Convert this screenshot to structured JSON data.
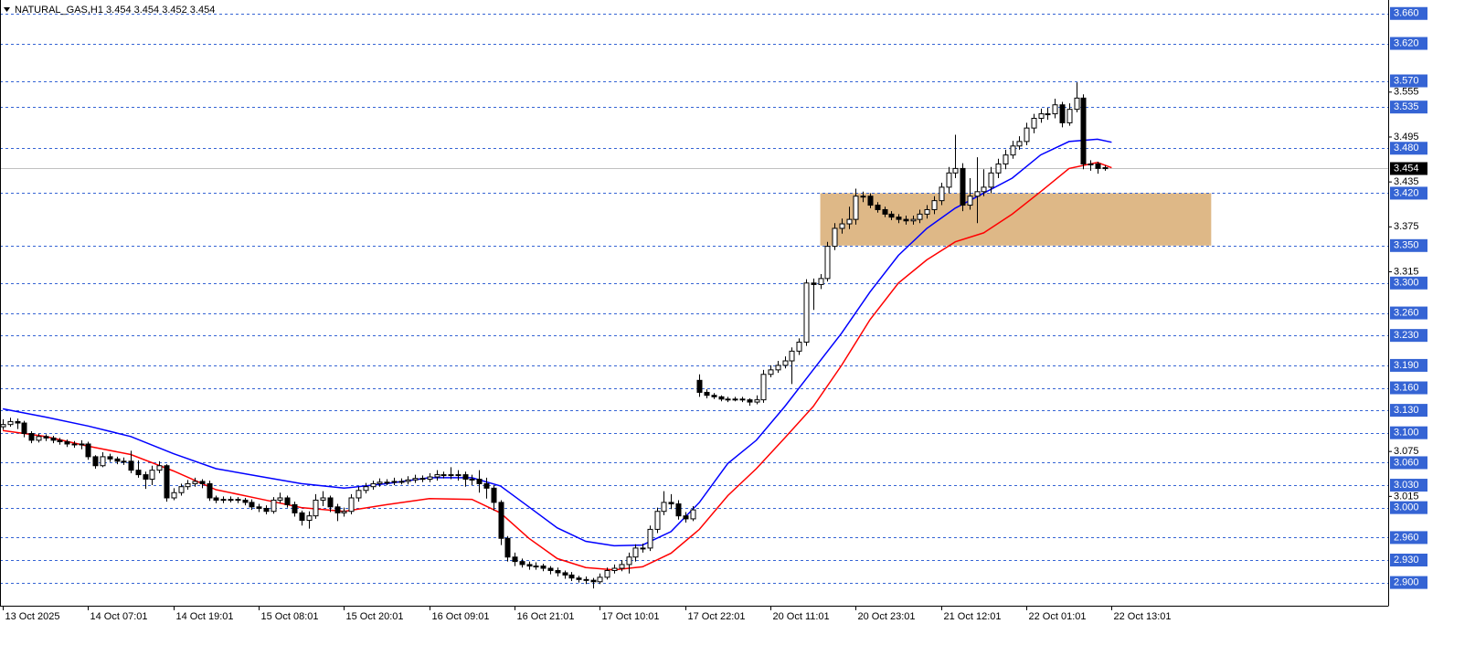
{
  "chart_data": {
    "type": "candlestick",
    "title": "NATURAL_GAS,H1  3.454 3.454 3.452 3.454",
    "xlim": [
      -0.4,
      194.9
    ],
    "ylim": [
      2.869,
      3.678
    ],
    "up_color": "#ffffff",
    "down_color": "#000000",
    "open": [
      3.108,
      3.111,
      3.115,
      3.113,
      3.099,
      3.09,
      3.095,
      3.093,
      3.09,
      3.088,
      3.085,
      3.084,
      3.085,
      3.068,
      3.056,
      3.068,
      3.065,
      3.062,
      3.062,
      3.05,
      3.044,
      3.038,
      3.05,
      3.056,
      3.013,
      3.02,
      3.028,
      3.032,
      3.035,
      3.032,
      3.013,
      3.01,
      3.011,
      3.011,
      3.01,
      3.007,
      3.001,
      2.999,
      2.995,
      3.01,
      3.013,
      3.004,
      2.993,
      2.983,
      2.989,
      3.01,
      3.013,
      3.001,
      2.993,
      2.995,
      3.013,
      3.023,
      3.028,
      3.032,
      3.034,
      3.034,
      3.035,
      3.035,
      3.037,
      3.039,
      3.038,
      3.041,
      3.044,
      3.043,
      3.044,
      3.044,
      3.038,
      3.038,
      3.032,
      3.026,
      3.007,
      2.959,
      2.934,
      2.928,
      2.924,
      2.922,
      2.922,
      2.919,
      2.916,
      2.913,
      2.91,
      2.906,
      2.904,
      2.903,
      2.901,
      2.907,
      2.916,
      2.919,
      2.924,
      2.934,
      2.946,
      2.946,
      2.971,
      2.995,
      3.007,
      3.005,
      2.989,
      2.985,
      3.17,
      3.154,
      3.15,
      3.148,
      3.145,
      3.144,
      3.145,
      3.144,
      3.141,
      3.144,
      3.178,
      3.184,
      3.19,
      3.196,
      3.209,
      3.221,
      3.3,
      3.298,
      3.306,
      3.349,
      3.373,
      3.379,
      3.385,
      3.416,
      3.416,
      3.404,
      3.398,
      3.392,
      3.388,
      3.385,
      3.383,
      3.385,
      3.392,
      3.398,
      3.41,
      3.428,
      3.447,
      3.453,
      3.404,
      3.416,
      3.422,
      3.428,
      3.447,
      3.459,
      3.471,
      3.483,
      3.489,
      3.507,
      3.52,
      3.526,
      3.526,
      3.538,
      3.514,
      3.532,
      3.547,
      3.459,
      3.459,
      3.453
    ],
    "high": [
      3.118,
      3.12,
      3.119,
      3.116,
      3.102,
      3.099,
      3.098,
      3.096,
      3.093,
      3.091,
      3.089,
      3.09,
      3.088,
      3.07,
      3.074,
      3.072,
      3.068,
      3.067,
      3.076,
      3.063,
      3.048,
      3.056,
      3.062,
      3.058,
      3.026,
      3.032,
      3.037,
      3.04,
      3.038,
      3.036,
      3.016,
      3.015,
      3.015,
      3.014,
      3.013,
      3.011,
      3.005,
      3.003,
      3.014,
      3.02,
      3.016,
      3.008,
      2.996,
      2.995,
      3.018,
      3.022,
      3.016,
      3.005,
      3.0,
      3.018,
      3.028,
      3.033,
      3.036,
      3.039,
      3.038,
      3.04,
      3.039,
      3.042,
      3.044,
      3.043,
      3.046,
      3.05,
      3.048,
      3.054,
      3.05,
      3.048,
      3.044,
      3.05,
      3.04,
      3.03,
      3.01,
      2.962,
      2.94,
      2.932,
      2.928,
      2.927,
      2.925,
      2.922,
      2.92,
      2.916,
      2.914,
      2.909,
      2.908,
      2.906,
      2.912,
      2.92,
      2.924,
      2.93,
      2.94,
      2.951,
      2.952,
      2.976,
      3.0,
      3.022,
      3.018,
      3.01,
      2.994,
      3.002,
      3.178,
      3.158,
      3.153,
      3.15,
      3.148,
      3.148,
      3.148,
      3.146,
      3.15,
      3.184,
      3.19,
      3.196,
      3.202,
      3.214,
      3.226,
      3.305,
      3.306,
      3.312,
      3.355,
      3.38,
      3.386,
      3.402,
      3.426,
      3.422,
      3.42,
      3.408,
      3.402,
      3.396,
      3.392,
      3.39,
      3.39,
      3.398,
      3.404,
      3.416,
      3.434,
      3.455,
      3.498,
      3.46,
      3.44,
      3.468,
      3.452,
      3.455,
      3.466,
      3.478,
      3.49,
      3.496,
      3.514,
      3.526,
      3.533,
      3.534,
      3.546,
      3.542,
      3.54,
      3.568,
      3.552,
      3.464,
      3.462,
      3.457
    ],
    "low": [
      3.104,
      3.108,
      3.105,
      3.094,
      3.086,
      3.087,
      3.089,
      3.086,
      3.084,
      3.081,
      3.08,
      3.078,
      3.064,
      3.052,
      3.054,
      3.061,
      3.058,
      3.057,
      3.046,
      3.04,
      3.025,
      3.03,
      3.046,
      3.008,
      3.01,
      3.016,
      3.024,
      3.028,
      3.026,
      3.009,
      3.006,
      3.006,
      3.007,
      3.006,
      3.003,
      2.997,
      2.994,
      2.991,
      2.992,
      3.006,
      3.0,
      2.988,
      2.976,
      2.972,
      2.985,
      3.002,
      2.994,
      2.982,
      2.988,
      2.991,
      3.008,
      3.019,
      3.024,
      3.028,
      3.03,
      3.03,
      3.031,
      3.031,
      3.033,
      3.034,
      3.034,
      3.036,
      3.039,
      3.038,
      3.036,
      3.028,
      3.03,
      3.02,
      3.012,
      2.996,
      2.95,
      2.928,
      2.922,
      2.92,
      2.917,
      2.917,
      2.915,
      2.911,
      2.908,
      2.905,
      2.902,
      2.9,
      2.898,
      2.892,
      2.898,
      2.904,
      2.912,
      2.915,
      2.912,
      2.928,
      2.94,
      2.942,
      2.966,
      2.99,
      2.998,
      2.984,
      2.98,
      2.982,
      3.148,
      3.146,
      3.145,
      3.142,
      3.141,
      3.142,
      3.141,
      3.136,
      3.138,
      3.14,
      3.174,
      3.18,
      3.186,
      3.165,
      3.204,
      3.216,
      3.264,
      3.292,
      3.302,
      3.344,
      3.366,
      3.372,
      3.378,
      3.408,
      3.4,
      3.394,
      3.388,
      3.384,
      3.38,
      3.378,
      3.378,
      3.38,
      3.386,
      3.392,
      3.404,
      3.42,
      3.44,
      3.396,
      3.398,
      3.38,
      3.416,
      3.42,
      3.44,
      3.452,
      3.466,
      3.478,
      3.484,
      3.5,
      3.514,
      3.518,
      3.52,
      3.508,
      3.51,
      3.528,
      3.452,
      3.45,
      3.446,
      3.45
    ],
    "close": [
      3.111,
      3.115,
      3.113,
      3.099,
      3.09,
      3.095,
      3.093,
      3.09,
      3.088,
      3.085,
      3.084,
      3.085,
      3.068,
      3.056,
      3.068,
      3.065,
      3.062,
      3.062,
      3.05,
      3.044,
      3.038,
      3.05,
      3.056,
      3.013,
      3.02,
      3.028,
      3.032,
      3.035,
      3.032,
      3.013,
      3.01,
      3.011,
      3.011,
      3.01,
      3.007,
      3.001,
      2.999,
      2.995,
      3.01,
      3.013,
      3.004,
      2.993,
      2.983,
      2.989,
      3.01,
      3.013,
      3.001,
      2.993,
      2.995,
      3.013,
      3.023,
      3.028,
      3.032,
      3.034,
      3.034,
      3.035,
      3.035,
      3.037,
      3.039,
      3.038,
      3.041,
      3.044,
      3.043,
      3.044,
      3.044,
      3.038,
      3.038,
      3.032,
      3.026,
      3.007,
      2.959,
      2.934,
      2.928,
      2.924,
      2.922,
      2.922,
      2.919,
      2.916,
      2.913,
      2.91,
      2.906,
      2.904,
      2.903,
      2.901,
      2.907,
      2.916,
      2.919,
      2.924,
      2.934,
      2.946,
      2.946,
      2.971,
      2.995,
      3.007,
      3.005,
      2.989,
      2.985,
      2.997,
      3.154,
      3.15,
      3.148,
      3.145,
      3.144,
      3.145,
      3.144,
      3.141,
      3.144,
      3.178,
      3.184,
      3.19,
      3.196,
      3.209,
      3.221,
      3.3,
      3.298,
      3.306,
      3.349,
      3.373,
      3.379,
      3.385,
      3.416,
      3.416,
      3.404,
      3.398,
      3.392,
      3.388,
      3.385,
      3.383,
      3.385,
      3.392,
      3.398,
      3.41,
      3.428,
      3.447,
      3.453,
      3.404,
      3.416,
      3.422,
      3.428,
      3.447,
      3.459,
      3.471,
      3.483,
      3.489,
      3.507,
      3.52,
      3.526,
      3.526,
      3.538,
      3.514,
      3.532,
      3.547,
      3.459,
      3.459,
      3.453,
      3.454
    ],
    "ma": [
      {
        "color": "#0000ff",
        "x": [
          0,
          6,
          12,
          18,
          24,
          30,
          36,
          42,
          48,
          54,
          60,
          66,
          70,
          74,
          78,
          82,
          86,
          90,
          94,
          98,
          102,
          106,
          110,
          114,
          118,
          122,
          126,
          130,
          134,
          138,
          142,
          146,
          150,
          154,
          156
        ],
        "values": [
          3.132,
          3.121,
          3.109,
          3.095,
          3.072,
          3.052,
          3.042,
          3.032,
          3.026,
          3.032,
          3.04,
          3.04,
          3.029,
          3.001,
          2.973,
          2.955,
          2.949,
          2.95,
          2.968,
          3.007,
          3.059,
          3.09,
          3.135,
          3.184,
          3.233,
          3.288,
          3.337,
          3.373,
          3.4,
          3.42,
          3.44,
          3.471,
          3.489,
          3.492,
          3.488
        ]
      },
      {
        "color": "#ff0000",
        "x": [
          0,
          6,
          12,
          18,
          24,
          30,
          36,
          42,
          48,
          54,
          60,
          66,
          70,
          74,
          78,
          82,
          86,
          90,
          94,
          98,
          102,
          106,
          110,
          114,
          118,
          122,
          126,
          130,
          134,
          138,
          142,
          146,
          150,
          154,
          156
        ],
        "values": [
          3.103,
          3.095,
          3.082,
          3.071,
          3.049,
          3.024,
          3.012,
          3.0,
          2.995,
          3.004,
          3.012,
          3.011,
          2.993,
          2.959,
          2.932,
          2.92,
          2.917,
          2.921,
          2.939,
          2.971,
          3.016,
          3.052,
          3.093,
          3.135,
          3.19,
          3.251,
          3.3,
          3.331,
          3.355,
          3.367,
          3.392,
          3.422,
          3.453,
          3.461,
          3.454
        ]
      }
    ],
    "zone": {
      "x": [
        115,
        170
      ],
      "y": [
        3.35,
        3.42
      ],
      "color": "#deb887"
    },
    "level_color": "#3564d4",
    "levels": [
      {
        "value": 3.66,
        "label": "3.660"
      },
      {
        "value": 3.62,
        "label": "3.620"
      },
      {
        "value": 3.57,
        "label": "3.570"
      },
      {
        "value": 3.535,
        "label": "3.535"
      },
      {
        "value": 3.48,
        "label": "3.480"
      },
      {
        "value": 3.42,
        "label": "3.420"
      },
      {
        "value": 3.35,
        "label": "3.350"
      },
      {
        "value": 3.3,
        "label": "3.300"
      },
      {
        "value": 3.26,
        "label": "3.260"
      },
      {
        "value": 3.23,
        "label": "3.230"
      },
      {
        "value": 3.19,
        "label": "3.190"
      },
      {
        "value": 3.16,
        "label": "3.160"
      },
      {
        "value": 3.13,
        "label": "3.130"
      },
      {
        "value": 3.1,
        "label": "3.100"
      },
      {
        "value": 3.06,
        "label": "3.060"
      },
      {
        "value": 3.03,
        "label": "3.030"
      },
      {
        "value": 3.0,
        "label": "3.000"
      },
      {
        "value": 2.96,
        "label": "2.960"
      },
      {
        "value": 2.93,
        "label": "2.930"
      },
      {
        "value": 2.9,
        "label": "2.900"
      }
    ],
    "yticks": [
      3.555,
      3.495,
      3.435,
      3.375,
      3.315,
      3.075,
      3.015
    ],
    "current_price": 3.454,
    "xticks": [
      {
        "value": 0,
        "label": "13 Oct 2025"
      },
      {
        "value": 12,
        "label": "14 Oct 07:01"
      },
      {
        "value": 24,
        "label": "14 Oct 19:01"
      },
      {
        "value": 36,
        "label": "15 Oct 08:01"
      },
      {
        "value": 48,
        "label": "15 Oct 20:01"
      },
      {
        "value": 60,
        "label": "16 Oct 09:01"
      },
      {
        "value": 72,
        "label": "16 Oct 21:01"
      },
      {
        "value": 84,
        "label": "17 Oct 10:01"
      },
      {
        "value": 96,
        "label": "17 Oct 22:01"
      },
      {
        "value": 108,
        "label": "20 Oct 11:01"
      },
      {
        "value": 120,
        "label": "20 Oct 23:01"
      },
      {
        "value": 132,
        "label": "21 Oct 12:01"
      },
      {
        "value": 144,
        "label": "22 Oct 01:01"
      },
      {
        "value": 156,
        "label": "22 Oct 13:01"
      }
    ]
  }
}
